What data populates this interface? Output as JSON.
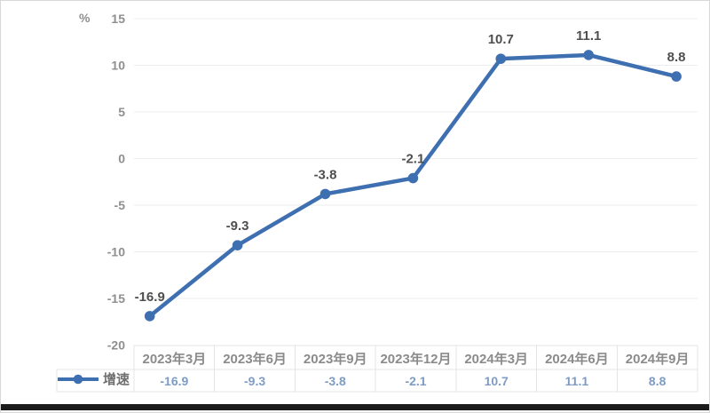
{
  "chart_data": {
    "type": "line",
    "title": "",
    "unit_label": "%",
    "categories": [
      "2023年3月",
      "2023年6月",
      "2023年9月",
      "2023年12月",
      "2024年3月",
      "2024年6月",
      "2024年9月"
    ],
    "series": [
      {
        "name": "增速",
        "values": [
          -16.9,
          -9.3,
          -3.8,
          -2.1,
          10.7,
          11.1,
          8.8
        ]
      }
    ],
    "data_labels": [
      "-16.9",
      "-9.3",
      "-3.8",
      "-2.1",
      "10.7",
      "11.1",
      "8.8"
    ],
    "table_values": [
      "-16.9",
      "-9.3",
      "-3.8",
      "-2.1",
      "10.7",
      "11.1",
      "8.8"
    ],
    "y_ticks": [
      15,
      10,
      5,
      0,
      -5,
      -10,
      -15,
      -20
    ],
    "ylim": [
      -20,
      15
    ],
    "grid": true,
    "legend_position": "bottom-left",
    "has_data_table": true,
    "colors": {
      "line": "#3E6FB1",
      "data_label": "#4F4F4F",
      "axis_text": "#8F8F8F",
      "table_header_text": "#8B8B8B",
      "table_value_text": "#7E9CC4",
      "legend_text": "#6F6F6F",
      "gridline": "#EDEDED",
      "table_border": "#E4E4E4",
      "bottom_bar": "#1B1B1B"
    }
  }
}
